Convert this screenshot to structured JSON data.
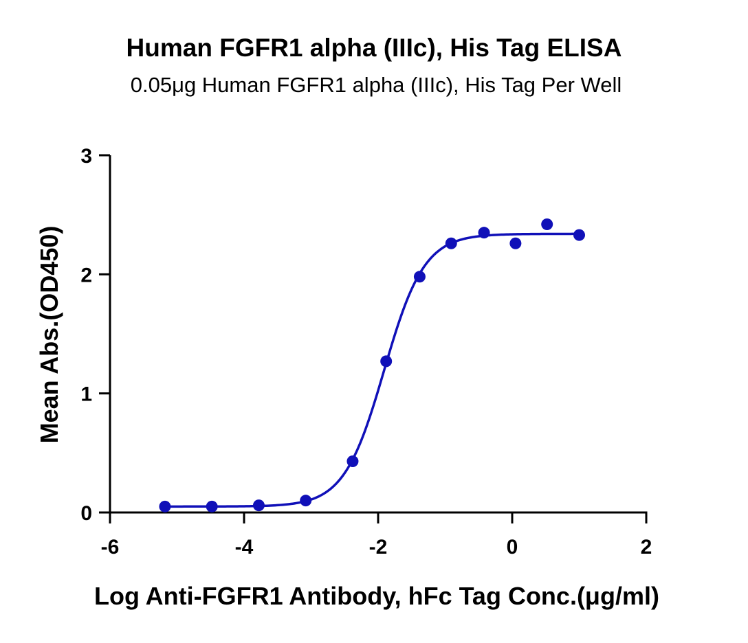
{
  "chart_data": {
    "type": "scatter",
    "title": "Human FGFR1 alpha (IIIc), His Tag ELISA",
    "subtitle": "0.05μg Human FGFR1 alpha (IIIc), His Tag Per Well",
    "xlabel": "Log Anti-FGFR1 Antibody, hFc Tag Conc.(μg/ml)",
    "ylabel": "Mean Abs.(OD450)",
    "xlim": [
      -6,
      2
    ],
    "ylim": [
      0,
      3
    ],
    "x_ticks": [
      "-6",
      "-4",
      "-2",
      "0",
      "2"
    ],
    "y_ticks": [
      "0",
      "1",
      "2",
      "3"
    ],
    "grid": false,
    "series": [
      {
        "points": [
          {
            "x": -5.18,
            "y": 0.05
          },
          {
            "x": -4.48,
            "y": 0.05
          },
          {
            "x": -3.78,
            "y": 0.06
          },
          {
            "x": -3.08,
            "y": 0.1
          },
          {
            "x": -2.38,
            "y": 0.43
          },
          {
            "x": -1.88,
            "y": 1.27
          },
          {
            "x": -1.38,
            "y": 1.98
          },
          {
            "x": -0.91,
            "y": 2.26
          },
          {
            "x": -0.42,
            "y": 2.35
          },
          {
            "x": 0.05,
            "y": 2.26
          },
          {
            "x": 0.52,
            "y": 2.42
          },
          {
            "x": 1.0,
            "y": 2.33
          }
        ],
        "fit": {
          "model": "4PL",
          "bottom": 0.05,
          "top": 2.34,
          "log_ec50": -1.91,
          "hill_slope": 1.45
        }
      }
    ],
    "colors": {
      "series": "#1010b8",
      "axis": "#000000"
    }
  }
}
